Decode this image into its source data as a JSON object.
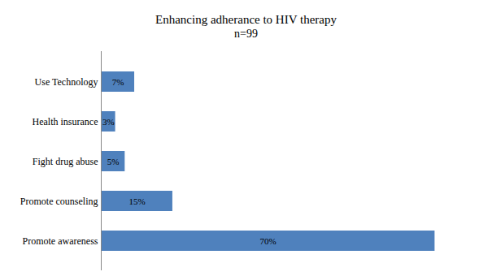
{
  "chart_data": {
    "type": "bar",
    "title": "Enhancing adherance to HIV therapy",
    "subtitle": "n=99",
    "orientation": "horizontal",
    "categories": [
      "Use Technology",
      "Health insurance",
      "Fight drug abuse",
      "Promote counseling",
      "Promote awareness"
    ],
    "values": [
      7,
      3,
      5,
      15,
      70
    ],
    "value_labels": [
      "7%",
      "3%",
      "5%",
      "15%",
      "70%"
    ],
    "color": "#4f81bd",
    "xlim": [
      0,
      80
    ],
    "data_labels": true,
    "tick_labels": "y",
    "grid": false
  }
}
